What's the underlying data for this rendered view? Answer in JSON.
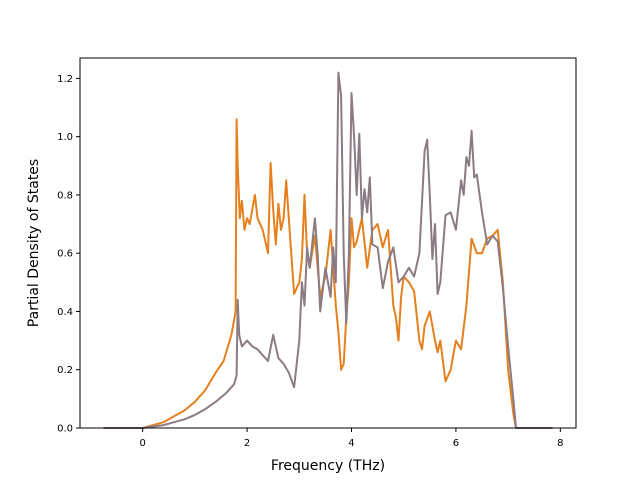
{
  "chart_data": {
    "type": "line",
    "xlabel": "Frequency (THz)",
    "ylabel": "Partial Density of States",
    "xlim": [
      -1.2,
      8.3
    ],
    "ylim": [
      0,
      1.27
    ],
    "xticks": [
      0,
      2,
      4,
      6,
      8
    ],
    "yticks": [
      0.0,
      0.2,
      0.4,
      0.6,
      0.8,
      1.0,
      1.2
    ],
    "xtick_labels": [
      "0",
      "2",
      "4",
      "6",
      "8"
    ],
    "ytick_labels": [
      "0.0",
      "0.2",
      "0.4",
      "0.6",
      "0.8",
      "1.0",
      "1.2"
    ],
    "grid": false,
    "series": [
      {
        "color": "#e6801f",
        "x": [
          -0.75,
          0.0,
          0.2,
          0.4,
          0.6,
          0.8,
          1.0,
          1.2,
          1.4,
          1.55,
          1.7,
          1.78,
          1.8,
          1.82,
          1.86,
          1.9,
          1.95,
          2.0,
          2.05,
          2.1,
          2.15,
          2.2,
          2.3,
          2.4,
          2.45,
          2.5,
          2.55,
          2.6,
          2.65,
          2.7,
          2.75,
          2.8,
          2.9,
          3.0,
          3.05,
          3.1,
          3.15,
          3.2,
          3.3,
          3.4,
          3.5,
          3.6,
          3.7,
          3.75,
          3.8,
          3.85,
          3.9,
          3.95,
          4.0,
          4.05,
          4.1,
          4.2,
          4.3,
          4.4,
          4.5,
          4.6,
          4.7,
          4.75,
          4.8,
          4.85,
          4.9,
          4.95,
          5.0,
          5.1,
          5.2,
          5.3,
          5.35,
          5.4,
          5.5,
          5.6,
          5.65,
          5.7,
          5.8,
          5.9,
          6.0,
          6.1,
          6.2,
          6.3,
          6.4,
          6.5,
          6.6,
          6.7,
          6.8,
          6.9,
          7.0,
          7.1,
          7.15,
          7.2
        ],
        "y": [
          0.0,
          0.0,
          0.01,
          0.02,
          0.04,
          0.06,
          0.09,
          0.13,
          0.19,
          0.23,
          0.32,
          0.4,
          1.06,
          0.9,
          0.72,
          0.78,
          0.68,
          0.72,
          0.7,
          0.75,
          0.8,
          0.72,
          0.68,
          0.6,
          0.91,
          0.75,
          0.63,
          0.77,
          0.68,
          0.72,
          0.85,
          0.72,
          0.46,
          0.5,
          0.58,
          0.8,
          0.6,
          0.55,
          0.66,
          0.45,
          0.52,
          0.68,
          0.42,
          0.33,
          0.2,
          0.22,
          0.38,
          0.5,
          0.72,
          0.62,
          0.64,
          0.72,
          0.55,
          0.68,
          0.7,
          0.62,
          0.68,
          0.55,
          0.42,
          0.38,
          0.3,
          0.45,
          0.52,
          0.5,
          0.47,
          0.3,
          0.27,
          0.35,
          0.4,
          0.3,
          0.26,
          0.3,
          0.16,
          0.2,
          0.3,
          0.27,
          0.42,
          0.65,
          0.6,
          0.6,
          0.65,
          0.66,
          0.68,
          0.5,
          0.2,
          0.05,
          0.0,
          0.0
        ]
      },
      {
        "color": "#8b7b84",
        "x": [
          -0.75,
          0.0,
          0.2,
          0.4,
          0.6,
          0.8,
          1.0,
          1.2,
          1.4,
          1.6,
          1.75,
          1.8,
          1.82,
          1.85,
          1.9,
          2.0,
          2.1,
          2.2,
          2.3,
          2.4,
          2.5,
          2.6,
          2.7,
          2.8,
          2.9,
          3.0,
          3.05,
          3.1,
          3.15,
          3.2,
          3.3,
          3.35,
          3.4,
          3.5,
          3.6,
          3.65,
          3.7,
          3.75,
          3.8,
          3.85,
          3.9,
          3.95,
          4.0,
          4.05,
          4.1,
          4.15,
          4.2,
          4.25,
          4.3,
          4.35,
          4.4,
          4.5,
          4.6,
          4.7,
          4.8,
          4.9,
          5.0,
          5.1,
          5.2,
          5.3,
          5.4,
          5.45,
          5.5,
          5.55,
          5.6,
          5.65,
          5.7,
          5.8,
          5.9,
          6.0,
          6.1,
          6.15,
          6.2,
          6.25,
          6.3,
          6.35,
          6.4,
          6.5,
          6.6,
          6.7,
          6.8,
          6.9,
          7.0,
          7.1,
          7.15,
          7.2,
          7.85
        ],
        "y": [
          0.0,
          0.0,
          0.005,
          0.01,
          0.02,
          0.03,
          0.045,
          0.065,
          0.09,
          0.12,
          0.15,
          0.18,
          0.44,
          0.32,
          0.28,
          0.3,
          0.28,
          0.27,
          0.25,
          0.23,
          0.32,
          0.24,
          0.22,
          0.19,
          0.14,
          0.3,
          0.5,
          0.42,
          0.62,
          0.55,
          0.72,
          0.6,
          0.4,
          0.55,
          0.45,
          0.62,
          0.5,
          1.22,
          1.14,
          0.6,
          0.36,
          0.6,
          1.15,
          1.0,
          0.8,
          1.01,
          0.72,
          0.82,
          0.74,
          0.86,
          0.63,
          0.62,
          0.48,
          0.57,
          0.62,
          0.5,
          0.52,
          0.55,
          0.52,
          0.6,
          0.95,
          0.99,
          0.8,
          0.58,
          0.7,
          0.46,
          0.5,
          0.73,
          0.74,
          0.68,
          0.85,
          0.8,
          0.93,
          0.9,
          1.02,
          0.86,
          0.87,
          0.74,
          0.63,
          0.66,
          0.64,
          0.48,
          0.28,
          0.1,
          0.0,
          0.0,
          0.0
        ]
      }
    ]
  }
}
